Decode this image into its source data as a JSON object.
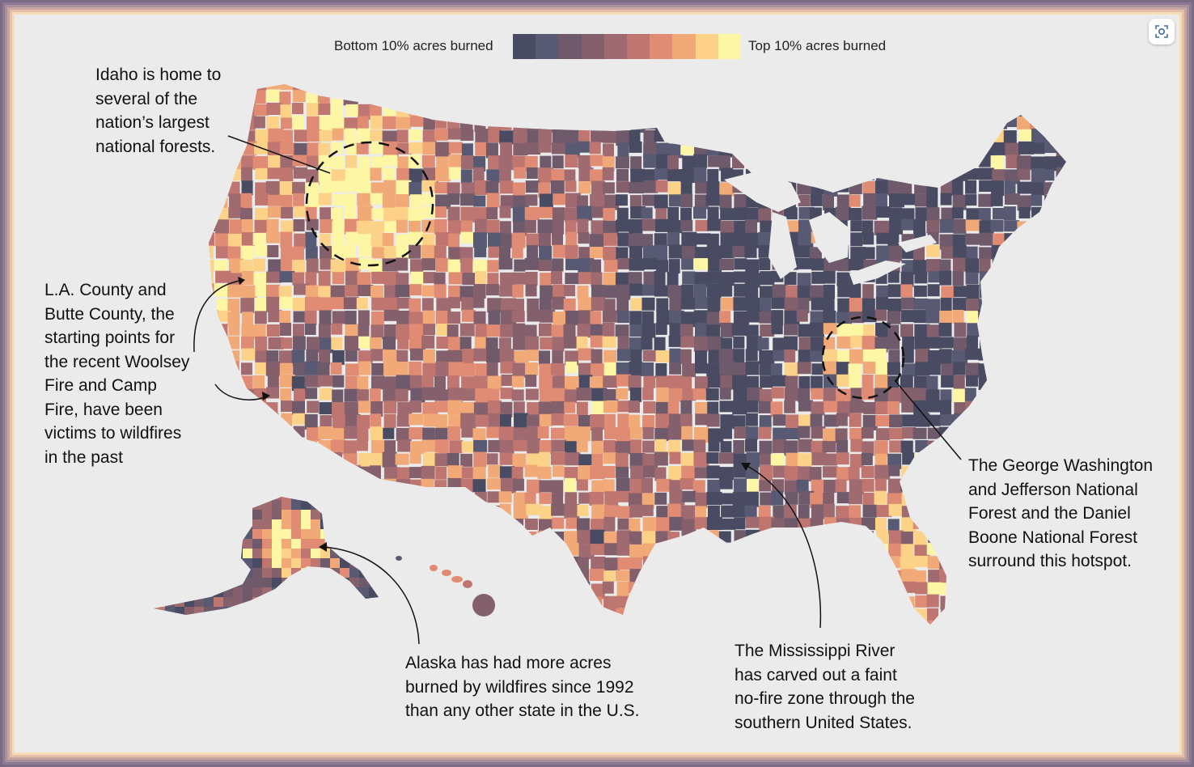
{
  "colors": {
    "background": "#ebebeb",
    "frame": [
      "#7a6a86",
      "#8c7a94",
      "#a78f9c",
      "#c7a59f",
      "#e4c0a8",
      "#f5deb6"
    ],
    "scale": [
      "#494b62",
      "#575a72",
      "#6e5a6b",
      "#845f6c",
      "#9f6b70",
      "#bf7671",
      "#e08b74",
      "#f1a977",
      "#fbd287",
      "#fdf6a4"
    ],
    "no_fire": "#4a4b63"
  },
  "legend": {
    "low_label": "Bottom 10% acres burned",
    "high_label": "Top 10% acres burned"
  },
  "annotations": {
    "idaho": "Idaho is home to\nseveral of the\nnation’s largest\nnational forests.",
    "la_butte": "L.A. County and\nButte County, the\nstarting points for\nthe recent Woolsey\nFire and Camp\nFire, have been\nvictims to wildfires\nin the past",
    "alaska": "Alaska has had more acres\nburned by wildfires since 1992\nthan any other state in the U.S.",
    "mississippi": "The Mississippi River\nhas carved out a faint\nno-fire zone through the\nsouthern United States.",
    "gw_jefferson": "The George Washington\nand Jefferson National\nForest and the Daniel\nBoone National Forest\nsurround this hotspot."
  },
  "icons": {
    "corner": "focus-icon"
  }
}
